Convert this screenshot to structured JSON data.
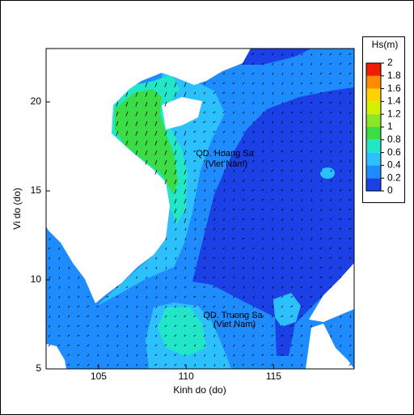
{
  "chart_data": {
    "type": "contour-map",
    "xlabel": "Kinh do (do)",
    "ylabel": "Vi do (do)",
    "xlim": [
      102,
      119.6
    ],
    "xticks": [
      105,
      110,
      115
    ],
    "ylim": [
      5,
      23
    ],
    "yticks": [
      5,
      10,
      15,
      20
    ],
    "annotations": [
      "QD. Hoang Sa",
      "(Viet Nam)",
      "QD. Truong Sa",
      "(Viet Nam)"
    ],
    "colorbar": {
      "title": "Hs(m)",
      "ticks": [
        0,
        0.2,
        0.4,
        0.6,
        0.8,
        1,
        1.2,
        1.4,
        1.6,
        1.8,
        2
      ],
      "colors": [
        "#1a40e6",
        "#1e8cff",
        "#2cc0ff",
        "#22e6c8",
        "#3cdc46",
        "#8ce628",
        "#d2f000",
        "#ffd200",
        "#ff8c00",
        "#f01e00"
      ]
    }
  }
}
